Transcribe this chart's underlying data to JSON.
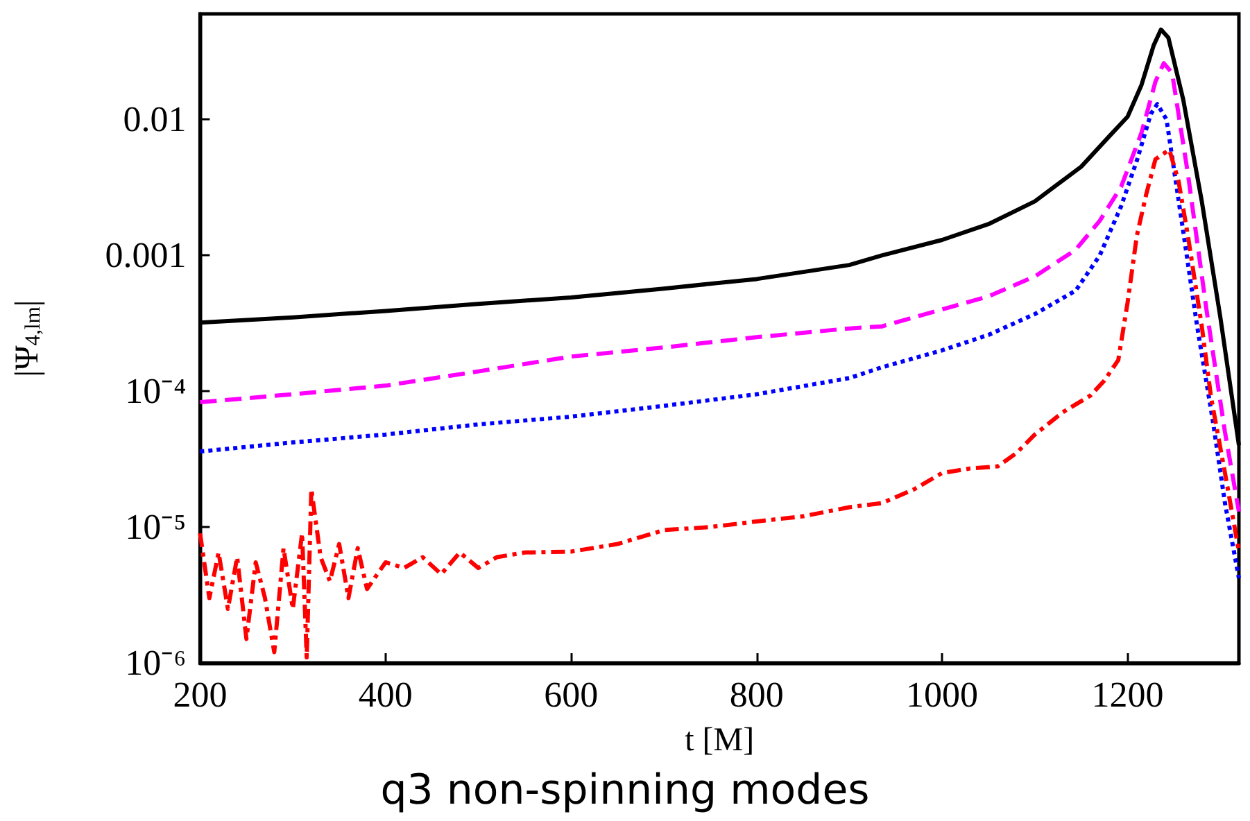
{
  "chart_data": {
    "type": "line",
    "title": "q3 non-spinning modes",
    "xlabel": "t [M]",
    "ylabel": "|Ψ$_{4,lm}$|",
    "log": "y",
    "grid": false,
    "marker": "none",
    "xlim": [
      200,
      1320
    ],
    "xticks": [
      200,
      400,
      600,
      800,
      1000,
      1200
    ],
    "ylim": [
      1e-06,
      0.06
    ],
    "yticks": [
      {
        "value": 1e-06,
        "label": "10⁻⁶"
      },
      {
        "value": 1e-05,
        "label": "10⁻⁵"
      },
      {
        "value": 0.0001,
        "label": "10⁻⁴"
      },
      {
        "value": 0.001,
        "label": "0.001"
      },
      {
        "value": 0.01,
        "label": "0.01"
      }
    ],
    "series": [
      {
        "color": "#000000",
        "line_style": "solid",
        "x": [
          200,
          300,
          400,
          500,
          600,
          700,
          800,
          900,
          935,
          1000,
          1050,
          1100,
          1150,
          1180,
          1200,
          1215,
          1228,
          1236,
          1244,
          1260,
          1280,
          1300,
          1320
        ],
        "values": [
          0.00032,
          0.00035,
          0.00039,
          0.00044,
          0.00049,
          0.00057,
          0.00067,
          0.00085,
          0.001,
          0.0013,
          0.0017,
          0.0025,
          0.0045,
          0.0075,
          0.0105,
          0.018,
          0.035,
          0.046,
          0.04,
          0.014,
          0.0025,
          0.00035,
          4e-05
        ]
      },
      {
        "color": "#ff00ff",
        "line_style": "dashed",
        "x": [
          200,
          300,
          400,
          500,
          600,
          700,
          800,
          900,
          935,
          1000,
          1050,
          1100,
          1144,
          1170,
          1193,
          1215,
          1230,
          1239,
          1248,
          1265,
          1285,
          1305,
          1320
        ],
        "values": [
          8.3e-05,
          9.5e-05,
          0.00011,
          0.00014,
          0.00018,
          0.00021,
          0.00025,
          0.00029,
          0.0003,
          0.0004,
          0.0005,
          0.0007,
          0.0011,
          0.0018,
          0.0032,
          0.008,
          0.019,
          0.026,
          0.022,
          0.004,
          0.0004,
          5e-05,
          1.3e-05
        ]
      },
      {
        "color": "#0000ff",
        "line_style": "dotted",
        "x": [
          200,
          300,
          400,
          500,
          600,
          700,
          800,
          900,
          935,
          1000,
          1050,
          1100,
          1144,
          1170,
          1193,
          1210,
          1225,
          1232,
          1242,
          1260,
          1275,
          1292,
          1305,
          1320
        ],
        "values": [
          3.6e-05,
          4.2e-05,
          4.8e-05,
          5.7e-05,
          6.5e-05,
          7.8e-05,
          9.5e-05,
          0.000125,
          0.00015,
          0.0002,
          0.00026,
          0.00037,
          0.00055,
          0.001,
          0.0023,
          0.005,
          0.011,
          0.013,
          0.01,
          0.0015,
          0.0003,
          6e-05,
          1.5e-05,
          4.2e-06
        ]
      },
      {
        "color": "#ff0000",
        "line_style": "dashdot",
        "x": [
          200,
          210,
          220,
          230,
          240,
          250,
          260,
          270,
          280,
          290,
          300,
          310,
          315,
          320,
          330,
          340,
          350,
          360,
          370,
          380,
          400,
          420,
          440,
          460,
          480,
          500,
          520,
          550,
          600,
          650,
          700,
          750,
          800,
          850,
          900,
          935,
          970,
          1000,
          1030,
          1060,
          1080,
          1100,
          1130,
          1160,
          1175,
          1190,
          1200,
          1210,
          1220,
          1230,
          1245,
          1255,
          1265,
          1280,
          1290,
          1305,
          1320
        ],
        "values": [
          9e-06,
          3e-06,
          6.5e-06,
          2.5e-06,
          6e-06,
          1.5e-06,
          5.5e-06,
          3e-06,
          1.2e-06,
          7e-06,
          2.5e-06,
          9e-06,
          1.1e-06,
          1.9e-05,
          6e-06,
          4e-06,
          7.5e-06,
          3e-06,
          7e-06,
          3.5e-06,
          5.5e-06,
          5e-06,
          6e-06,
          4.5e-06,
          6.5e-06,
          5e-06,
          6e-06,
          6.5e-06,
          6.6e-06,
          7.5e-06,
          9.5e-06,
          1e-05,
          1.1e-05,
          1.2e-05,
          1.4e-05,
          1.5e-05,
          1.9e-05,
          2.5e-05,
          2.7e-05,
          2.8e-05,
          3.5e-05,
          4.8e-05,
          7e-05,
          9.3e-05,
          0.00012,
          0.00017,
          0.00045,
          0.0014,
          0.0028,
          0.0051,
          0.006,
          0.0035,
          0.0014,
          0.0003,
          9e-05,
          2.5e-05,
          6.6e-06
        ]
      }
    ]
  }
}
